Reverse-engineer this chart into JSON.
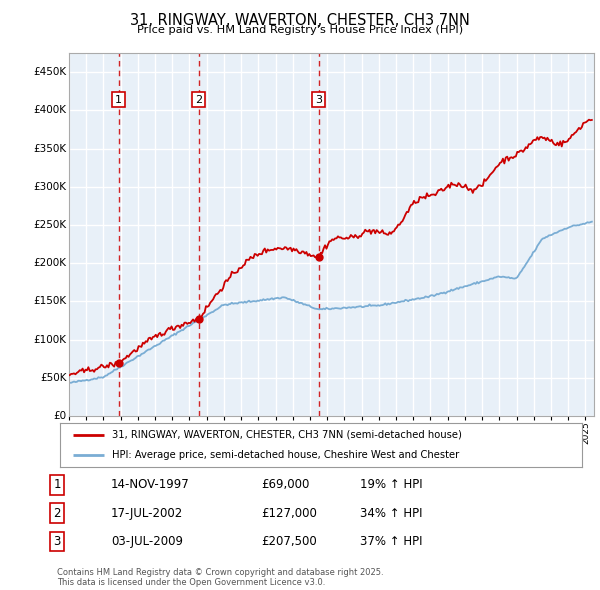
{
  "title": "31, RINGWAY, WAVERTON, CHESTER, CH3 7NN",
  "subtitle": "Price paid vs. HM Land Registry's House Price Index (HPI)",
  "ylim": [
    0,
    475000
  ],
  "yticks": [
    0,
    50000,
    100000,
    150000,
    200000,
    250000,
    300000,
    350000,
    400000,
    450000
  ],
  "ytick_labels": [
    "£0",
    "£50K",
    "£100K",
    "£150K",
    "£200K",
    "£250K",
    "£300K",
    "£350K",
    "£400K",
    "£450K"
  ],
  "background_color": "#ffffff",
  "chart_bg_color": "#e8f0f8",
  "grid_color": "#ffffff",
  "sale_prices": [
    69000,
    127000,
    207500
  ],
  "sale_years": [
    1997.878,
    2002.542,
    2009.503
  ],
  "sale_labels": [
    "1",
    "2",
    "3"
  ],
  "legend_line1": "31, RINGWAY, WAVERTON, CHESTER, CH3 7NN (semi-detached house)",
  "legend_line2": "HPI: Average price, semi-detached house, Cheshire West and Chester",
  "table_rows": [
    [
      "1",
      "14-NOV-1997",
      "£69,000",
      "19% ↑ HPI"
    ],
    [
      "2",
      "17-JUL-2002",
      "£127,000",
      "34% ↑ HPI"
    ],
    [
      "3",
      "03-JUL-2009",
      "£207,500",
      "37% ↑ HPI"
    ]
  ],
  "footer": "Contains HM Land Registry data © Crown copyright and database right 2025.\nThis data is licensed under the Open Government Licence v3.0.",
  "red_color": "#cc0000",
  "blue_color": "#7aadd4",
  "vline_color": "#cc0000"
}
